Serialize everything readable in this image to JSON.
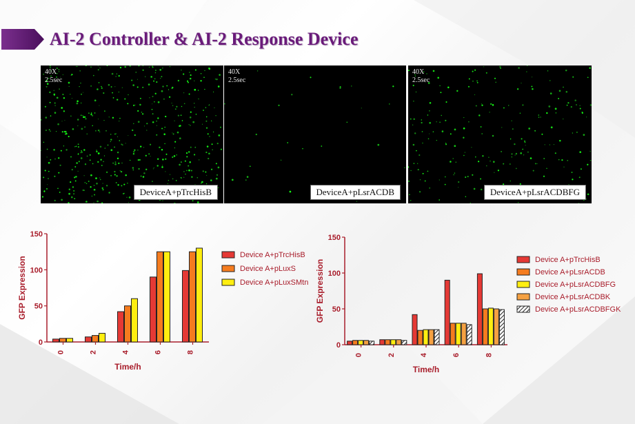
{
  "slide": {
    "title": "AI-2 Controller & AI-2 Response Device",
    "accent_color": "#6a1b7a"
  },
  "microscopy": [
    {
      "magnification": "40X",
      "exposure": "2.5sec",
      "caption": "DeviceA+pTrcHisB",
      "density": "high"
    },
    {
      "magnification": "40X",
      "exposure": "2.5sec",
      "caption": "DeviceA+pLsrACDB",
      "density": "low"
    },
    {
      "magnification": "40X",
      "exposure": "2.5sec",
      "caption": "DeviceA+pLsrACDBFG",
      "density": "medium"
    }
  ],
  "chart_data": [
    {
      "type": "bar",
      "title": "",
      "xlabel": "Time/h",
      "ylabel": "GFP Expression",
      "categories": [
        "0",
        "2",
        "4",
        "6",
        "8"
      ],
      "ylim": [
        0,
        150
      ],
      "yticks": [
        0,
        50,
        100,
        150
      ],
      "series": [
        {
          "name": "Device A+pTrcHisB",
          "color": "#e53935",
          "pattern": "solid",
          "values": [
            4,
            7,
            42,
            90,
            99
          ]
        },
        {
          "name": "Device A+pLuxS",
          "color": "#f57c1f",
          "pattern": "solid",
          "values": [
            5,
            9,
            50,
            125,
            125
          ]
        },
        {
          "name": "Device A+pLuxSMtn",
          "color": "#ffee10",
          "pattern": "solid",
          "values": [
            5,
            12,
            60,
            125,
            130
          ]
        }
      ]
    },
    {
      "type": "bar",
      "title": "",
      "xlabel": "Time/h",
      "ylabel": "GFP Expression",
      "categories": [
        "0",
        "2",
        "4",
        "6",
        "8"
      ],
      "ylim": [
        0,
        150
      ],
      "yticks": [
        0,
        50,
        100,
        150
      ],
      "series": [
        {
          "name": "Device A+pTrcHisB",
          "color": "#e53935",
          "pattern": "solid",
          "values": [
            5,
            7,
            42,
            90,
            99
          ]
        },
        {
          "name": "Device A+pLsrACDB",
          "color": "#f57c1f",
          "pattern": "solid",
          "values": [
            6,
            7,
            20,
            30,
            50
          ]
        },
        {
          "name": "Device A+pLsrACDBFG",
          "color": "#ffee10",
          "pattern": "solid",
          "values": [
            6,
            7,
            21,
            30,
            51
          ]
        },
        {
          "name": "Device A+pLsrACDBK",
          "color": "#f5a142",
          "pattern": "solid",
          "values": [
            6,
            7,
            21,
            30,
            50
          ]
        },
        {
          "name": "Device A+pLsrACDBFGK",
          "color": "#222222",
          "pattern": "hatch",
          "values": [
            5,
            6,
            21,
            28,
            49
          ]
        }
      ]
    }
  ]
}
